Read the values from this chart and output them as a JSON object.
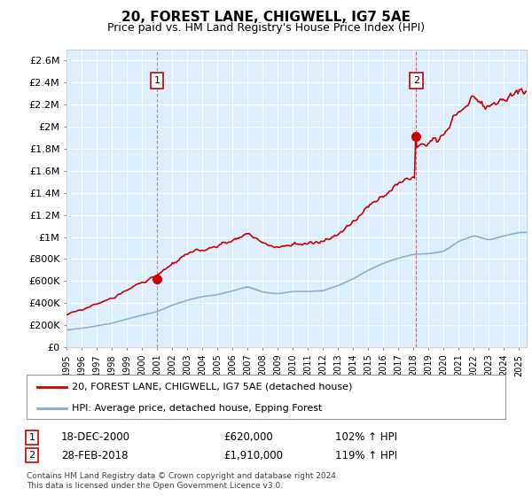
{
  "title": "20, FOREST LANE, CHIGWELL, IG7 5AE",
  "subtitle": "Price paid vs. HM Land Registry's House Price Index (HPI)",
  "legend_line1": "20, FOREST LANE, CHIGWELL, IG7 5AE (detached house)",
  "legend_line2": "HPI: Average price, detached house, Epping Forest",
  "sale1_label": "1",
  "sale1_date": "18-DEC-2000",
  "sale1_price_str": "£620,000",
  "sale1_hpi": "102% ↑ HPI",
  "sale1_year": 2001.0,
  "sale1_price": 620000,
  "sale2_label": "2",
  "sale2_date": "28-FEB-2018",
  "sale2_price_str": "£1,910,000",
  "sale2_hpi": "119% ↑ HPI",
  "sale2_year": 2018.17,
  "sale2_price": 1910000,
  "footnote": "Contains HM Land Registry data © Crown copyright and database right 2024.\nThis data is licensed under the Open Government Licence v3.0.",
  "red_color": "#cc0000",
  "blue_color": "#88aacc",
  "background_color": "#ddeeff",
  "grid_color": "#ffffff",
  "ylim_max": 2700000,
  "xlim_start": 1995.0,
  "xlim_end": 2025.5,
  "yticks": [
    0,
    200000,
    400000,
    600000,
    800000,
    1000000,
    1200000,
    1400000,
    1600000,
    1800000,
    2000000,
    2200000,
    2400000,
    2600000
  ],
  "ylabels": [
    "£0",
    "£200K",
    "£400K",
    "£600K",
    "£800K",
    "£1M",
    "£1.2M",
    "£1.4M",
    "£1.6M",
    "£1.8M",
    "£2M",
    "£2.2M",
    "£2.4M",
    "£2.6M"
  ],
  "xticks": [
    1995,
    1996,
    1997,
    1998,
    1999,
    2000,
    2001,
    2002,
    2003,
    2004,
    2005,
    2006,
    2007,
    2008,
    2009,
    2010,
    2011,
    2012,
    2013,
    2014,
    2015,
    2016,
    2017,
    2018,
    2019,
    2020,
    2021,
    2022,
    2023,
    2024,
    2025
  ]
}
